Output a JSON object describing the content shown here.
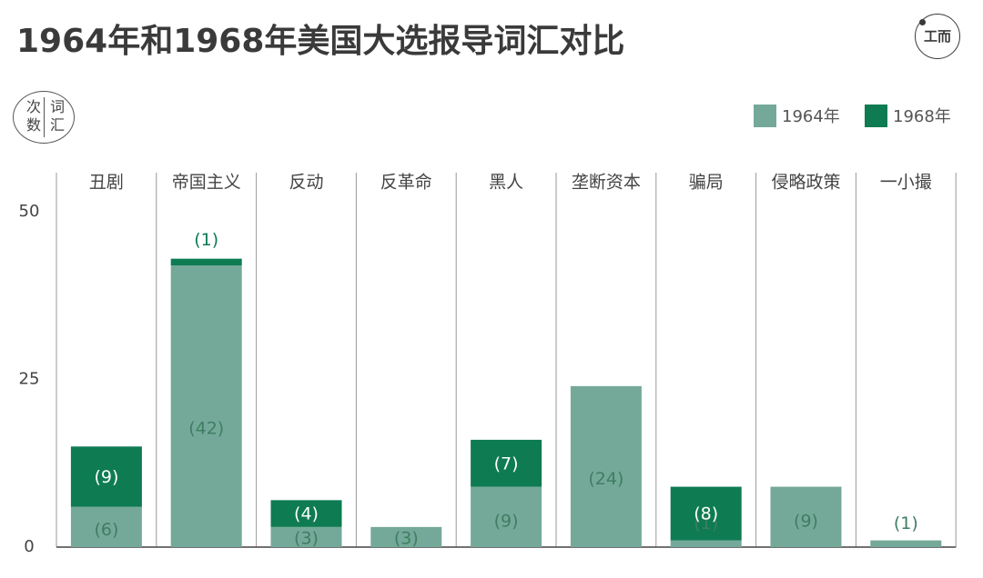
{
  "title": "1964年和1968年美国大选报导词汇对比",
  "logo": {
    "glyph": "工而"
  },
  "unit_badge": {
    "left": "次数",
    "right": "词汇"
  },
  "colors": {
    "s1964": "#74a99a",
    "s1968": "#0e7b53",
    "label1964": "#3f7d62",
    "label1968": "#ffffff",
    "axis": "#444444",
    "grid": "#9a9a9a"
  },
  "chart_data": {
    "type": "bar",
    "stacked": true,
    "categories": [
      "丑剧",
      "帝国主义",
      "反动",
      "反革命",
      "黑人",
      "垄断资本",
      "骗局",
      "侵略政策",
      "一小撮"
    ],
    "series": [
      {
        "name": "1964年",
        "values": [
          6,
          42,
          3,
          3,
          9,
          24,
          1,
          9,
          1
        ],
        "labels": [
          "(6)",
          "(42)",
          "(3)",
          "(3)",
          "(9)",
          "(24)",
          "(1)",
          "(9)",
          "(1)"
        ]
      },
      {
        "name": "1968年",
        "values": [
          9,
          1,
          4,
          0,
          7,
          0,
          8,
          0,
          0
        ],
        "labels": [
          "(9)",
          "(1)",
          "(4)",
          "",
          "(7)",
          "",
          "(8)",
          "",
          ""
        ]
      }
    ],
    "y_ticks": [
      "0",
      "25",
      "50"
    ],
    "ylim": [
      0,
      50
    ],
    "legend_position": "top-right",
    "grid": "vertical separators between categories"
  }
}
